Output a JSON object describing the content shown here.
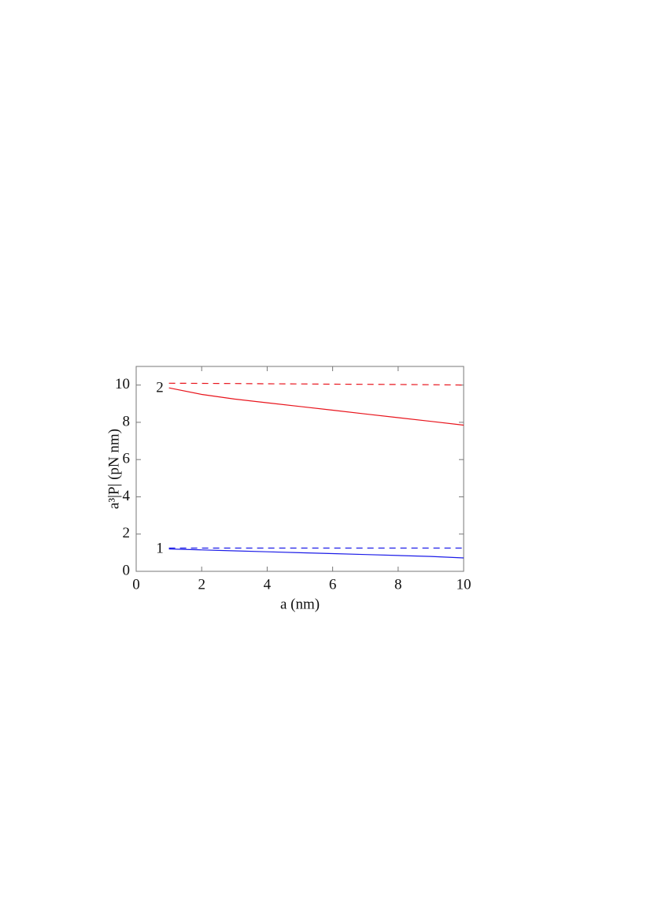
{
  "chart_data": {
    "type": "line",
    "xlabel": "a (nm)",
    "ylabel": "a³|P| (pN nm)",
    "annotations": [
      "2",
      "1"
    ],
    "x": [
      1,
      2,
      3,
      4,
      5,
      6,
      7,
      8,
      9,
      10
    ],
    "series": [
      {
        "color": "#e8141c",
        "dashed": false,
        "values": [
          9.85,
          9.5,
          9.25,
          9.05,
          8.85,
          8.65,
          8.45,
          8.25,
          8.05,
          7.85
        ]
      },
      {
        "color": "#e8141c",
        "dashed": true,
        "values": [
          10.1,
          10.09,
          10.08,
          10.07,
          10.06,
          10.05,
          10.04,
          10.03,
          10.02,
          10.0
        ]
      },
      {
        "color": "#1c1ce8",
        "dashed": false,
        "values": [
          1.2,
          1.15,
          1.1,
          1.05,
          1.0,
          0.95,
          0.9,
          0.85,
          0.8,
          0.72
        ]
      },
      {
        "color": "#1c1ce8",
        "dashed": true,
        "values": [
          1.25,
          1.25,
          1.25,
          1.25,
          1.25,
          1.25,
          1.25,
          1.25,
          1.25,
          1.25
        ]
      }
    ],
    "xlim": [
      0,
      10
    ],
    "xticks": [
      0,
      2,
      4,
      6,
      8,
      10
    ],
    "ylim": [
      0,
      11
    ],
    "yticks": [
      0,
      2,
      4,
      6,
      8,
      10
    ]
  }
}
